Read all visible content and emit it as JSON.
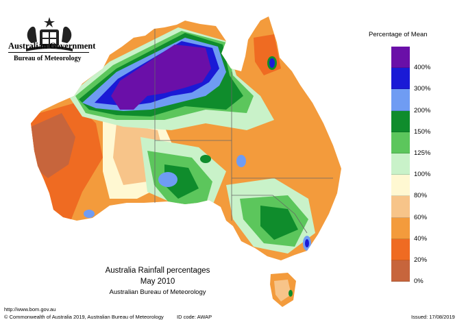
{
  "branding": {
    "government": "Australian Government",
    "agency": "Bureau of Meteorology",
    "crest": "commonwealth-coat-of-arms"
  },
  "legend": {
    "title": "Percentage of Mean",
    "bins": [
      {
        "label": "400%",
        "color": "#6a0fa8"
      },
      {
        "label": "300%",
        "color": "#1a1ad6"
      },
      {
        "label": "200%",
        "color": "#6f9cf3"
      },
      {
        "label": "150%",
        "color": "#0f8c2c"
      },
      {
        "label": "125%",
        "color": "#5cc65c"
      },
      {
        "label": "100%",
        "color": "#c9f2c9"
      },
      {
        "label": "80%",
        "color": "#fff8d2"
      },
      {
        "label": "60%",
        "color": "#f7c489"
      },
      {
        "label": "40%",
        "color": "#f39b3c"
      },
      {
        "label": "20%",
        "color": "#ef6b22"
      },
      {
        "label": "0%",
        "color": "#c7653c"
      }
    ]
  },
  "caption": {
    "title": "Australia Rainfall percentages",
    "period": "May 2010",
    "source": "Australian Bureau of Meteorology"
  },
  "footer": {
    "url": "http://www.bom.gov.au",
    "copyright": "© Commonwealth of Australia 2019, Australian Bureau of Meteorology",
    "id_code": "ID code: AWAP",
    "issued": "Issued: 17/08/2019"
  }
}
